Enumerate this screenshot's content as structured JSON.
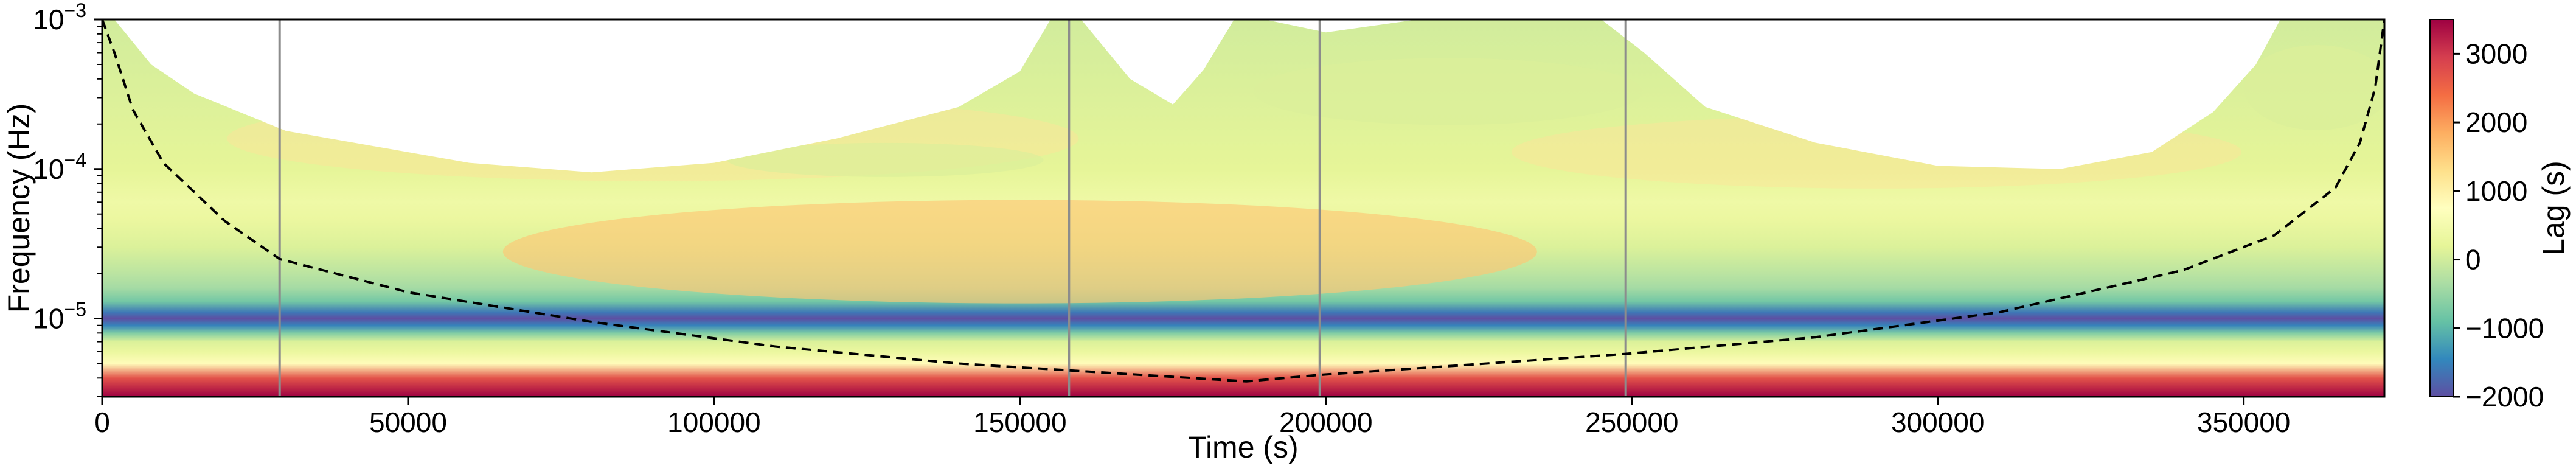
{
  "chart_data": {
    "type": "heatmap",
    "title": "",
    "xlabel": "Time (s)",
    "ylabel": "Frequency (Hz)",
    "colorbar_label": "Lag (s)",
    "xlim": [
      0,
      373000
    ],
    "ylim": [
      3e-06,
      0.001
    ],
    "y_scale": "log",
    "clim": [
      -2000,
      3500
    ],
    "colormap": "Spectral_r",
    "x_ticks": [
      0,
      50000,
      100000,
      150000,
      200000,
      250000,
      300000,
      350000
    ],
    "x_tick_labels": [
      "0",
      "50000",
      "100000",
      "150000",
      "200000",
      "250000",
      "300000",
      "350000"
    ],
    "y_ticks": [
      1e-05,
      0.0001,
      0.001
    ],
    "y_tick_labels": [
      {
        "base": "10",
        "exp": "−5"
      },
      {
        "base": "10",
        "exp": "−4"
      },
      {
        "base": "10",
        "exp": "−3"
      }
    ],
    "colorbar_ticks": [
      -2000,
      -1000,
      0,
      1000,
      2000,
      3000
    ],
    "colorbar_tick_labels": [
      "−2000",
      "−1000",
      "0",
      "1000",
      "2000",
      "3000"
    ],
    "vertical_lines_x": [
      29000,
      158000,
      199000,
      249000
    ],
    "cone_of_influence": {
      "style": "dashed",
      "x": [
        0,
        2000,
        5000,
        10000,
        20000,
        29000,
        50000,
        80000,
        110000,
        140000,
        158000,
        187000,
        199000,
        220000,
        249000,
        280000,
        310000,
        340000,
        355000,
        365000,
        369000,
        371500,
        373000
      ],
      "freq": [
        0.001,
        0.0006,
        0.00025,
        0.00011,
        4.5e-05,
        2.5e-05,
        1.5e-05,
        9.5e-06,
        6.5e-06,
        5e-06,
        4.5e-06,
        3.8e-06,
        4.2e-06,
        4.8e-06,
        5.8e-06,
        7.5e-06,
        1.1e-05,
        2.1e-05,
        3.6e-05,
        7.5e-05,
        0.00015,
        0.00035,
        0.001
      ]
    },
    "lag_vs_frequency_profile": {
      "freq": [
        3e-06,
        4e-06,
        5e-06,
        6e-06,
        7e-06,
        8e-06,
        9e-06,
        1e-05,
        1.1e-05,
        1.3e-05,
        1.6e-05,
        2e-05,
        3e-05,
        4.5e-05,
        6e-05,
        0.0001,
        0.001
      ],
      "lag": [
        3500,
        2700,
        800,
        300,
        100,
        -700,
        -1500,
        -2000,
        -1600,
        -800,
        -400,
        -200,
        100,
        300,
        400,
        200,
        0
      ]
    }
  }
}
